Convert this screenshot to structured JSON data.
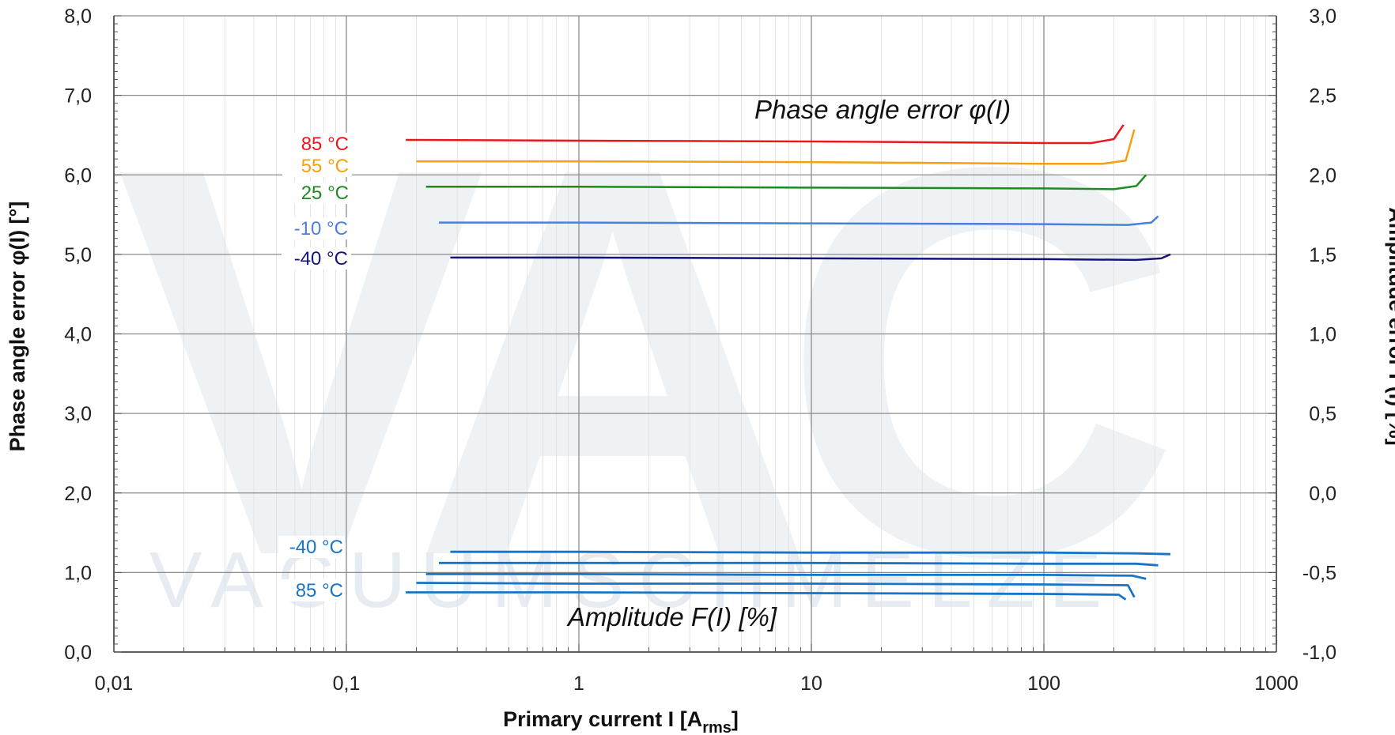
{
  "chart_data": {
    "type": "line",
    "xlabel": "Primary current I [A",
    "xlabel_sub": "rms",
    "xlabel_end": "]",
    "ylabel_left": "Phase angle error φ(I) [°]",
    "ylabel_right": "Amplitude error F(I) [%]",
    "x_scale": "log",
    "xlim": [
      0.01,
      1000
    ],
    "ylim_left": [
      0,
      8
    ],
    "ylim_right": [
      -1.0,
      3.0
    ],
    "x_ticks": [
      "0,01",
      "0,1",
      "1",
      "10",
      "100",
      "1000"
    ],
    "y_left_ticks": [
      "0,0",
      "1,0",
      "2,0",
      "3,0",
      "4,0",
      "5,0",
      "6,0",
      "7,0",
      "8,0"
    ],
    "y_right_ticks": [
      "-1,0",
      "-0,5",
      "0,0",
      "0,5",
      "1,0",
      "1,5",
      "2,0",
      "2,5",
      "3,0"
    ],
    "grid": true,
    "annotations": {
      "phase": "Phase angle error φ(I)",
      "amplitude": "Amplitude F(I) [%]"
    },
    "watermark": {
      "logo": "VAC",
      "text": "VACUUMSCHMELZE"
    },
    "colors": {
      "85C": "#e8191e",
      "55C": "#f5a00e",
      "25C": "#1e8a1e",
      "m10C": "#4a7fe0",
      "m40C": "#14147a",
      "amplitude": "#1874c4"
    },
    "phase_series": [
      {
        "name": "85 °C",
        "color": "#e8191e",
        "x": [
          0.18,
          1,
          10,
          100,
          160,
          200,
          220
        ],
        "y": [
          6.44,
          6.43,
          6.42,
          6.4,
          6.4,
          6.45,
          6.63
        ]
      },
      {
        "name": "55 °C",
        "color": "#f5a00e",
        "x": [
          0.2,
          1,
          10,
          100,
          180,
          225,
          245
        ],
        "y": [
          6.17,
          6.17,
          6.16,
          6.14,
          6.14,
          6.18,
          6.57
        ]
      },
      {
        "name": "25 °C",
        "color": "#1e8a1e",
        "x": [
          0.22,
          1,
          10,
          100,
          200,
          250,
          275
        ],
        "y": [
          5.85,
          5.85,
          5.84,
          5.83,
          5.82,
          5.86,
          6.0
        ]
      },
      {
        "name": "-10 °C",
        "color": "#4a7fe0",
        "x": [
          0.25,
          1,
          10,
          100,
          230,
          290,
          310
        ],
        "y": [
          5.4,
          5.4,
          5.39,
          5.38,
          5.37,
          5.4,
          5.48
        ]
      },
      {
        "name": "-40 °C",
        "color": "#14147a",
        "x": [
          0.28,
          1,
          10,
          100,
          250,
          320,
          350
        ],
        "y": [
          4.96,
          4.96,
          4.95,
          4.94,
          4.93,
          4.95,
          5.0
        ]
      }
    ],
    "amplitude_labels": [
      "-40 °C",
      "85 °C"
    ],
    "amplitude_series": [
      {
        "x": [
          0.28,
          1,
          10,
          100,
          250,
          350
        ],
        "y": [
          1.26,
          1.26,
          1.25,
          1.25,
          1.24,
          1.23
        ]
      },
      {
        "x": [
          0.25,
          1,
          10,
          100,
          250,
          310
        ],
        "y": [
          1.12,
          1.12,
          1.12,
          1.11,
          1.11,
          1.09
        ]
      },
      {
        "x": [
          0.22,
          1,
          10,
          100,
          240,
          275
        ],
        "y": [
          0.98,
          0.98,
          0.97,
          0.97,
          0.96,
          0.92
        ]
      },
      {
        "x": [
          0.2,
          1,
          10,
          100,
          230,
          245
        ],
        "y": [
          0.87,
          0.86,
          0.86,
          0.85,
          0.84,
          0.69
        ]
      },
      {
        "x": [
          0.18,
          1,
          10,
          100,
          210,
          225
        ],
        "y": [
          0.75,
          0.75,
          0.74,
          0.73,
          0.72,
          0.66
        ]
      }
    ]
  }
}
